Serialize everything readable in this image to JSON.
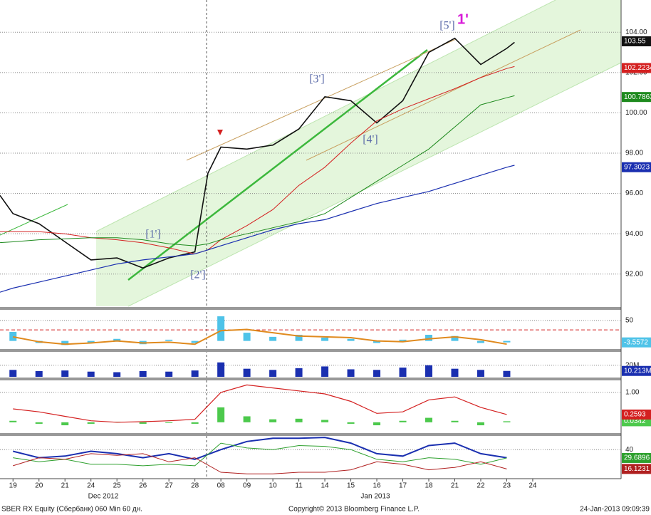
{
  "chart_data": [
    {
      "type": "line",
      "xlim": [
        -0.5,
        23.4
      ],
      "ylim": [
        90.4,
        105.6
      ],
      "yticks": [
        {
          "value": 92,
          "label": "92.00"
        },
        {
          "value": 94,
          "label": "94.00"
        },
        {
          "value": 96,
          "label": "96.00"
        },
        {
          "value": 98,
          "label": "98.00"
        },
        {
          "value": 100,
          "label": "100.00"
        },
        {
          "value": 102,
          "label": "102.00"
        },
        {
          "value": 104,
          "label": "104.00"
        }
      ],
      "xticks": [
        {
          "value": 0,
          "label": "19"
        },
        {
          "value": 1,
          "label": "20"
        },
        {
          "value": 2,
          "label": "21"
        },
        {
          "value": 3,
          "label": "24"
        },
        {
          "value": 4,
          "label": "25"
        },
        {
          "value": 5,
          "label": "26"
        },
        {
          "value": 6,
          "label": "27"
        },
        {
          "value": 7,
          "label": "28"
        },
        {
          "value": 8,
          "label": "08"
        },
        {
          "value": 9,
          "label": "09"
        },
        {
          "value": 10,
          "label": "10"
        },
        {
          "value": 11,
          "label": "11"
        },
        {
          "value": 12,
          "label": "14"
        },
        {
          "value": 13,
          "label": "15"
        },
        {
          "value": 14,
          "label": "16"
        },
        {
          "value": 15,
          "label": "17"
        },
        {
          "value": 16,
          "label": "18"
        },
        {
          "value": 17,
          "label": "21"
        },
        {
          "value": 18,
          "label": "22"
        },
        {
          "value": 19,
          "label": "23"
        },
        {
          "value": 20,
          "label": "24"
        }
      ],
      "months": [
        "Dec 2012",
        "Jan 2013"
      ],
      "annotations": [
        "[1']",
        "[2']",
        "[3']",
        "[4']",
        "[5']",
        "1'"
      ],
      "grid": true,
      "x": [
        -0.5,
        0,
        1,
        2,
        3,
        4,
        5,
        6,
        7,
        7.5,
        8,
        9,
        10,
        11,
        12,
        13,
        14,
        15,
        16,
        17,
        18,
        19,
        19.3
      ],
      "series": [
        {
          "kind": "line",
          "color": "#111111",
          "width": 1.6,
          "last": 103.55,
          "values": [
            95.9,
            95.0,
            94.5,
            93.6,
            92.7,
            92.8,
            92.3,
            92.8,
            93.1,
            97.0,
            98.3,
            98.2,
            98.4,
            99.2,
            100.8,
            100.6,
            99.5,
            100.6,
            103.0,
            103.7,
            102.4,
            103.2,
            103.5
          ]
        },
        {
          "kind": "line",
          "color": "#d42020",
          "width": 1,
          "last": 102.2234,
          "values": [
            94.1,
            94.1,
            94.1,
            94.0,
            93.8,
            93.7,
            93.55,
            93.3,
            93.0,
            93.2,
            93.7,
            94.4,
            95.2,
            96.4,
            97.3,
            98.5,
            99.6,
            100.2,
            100.7,
            101.2,
            101.75,
            102.2,
            102.3
          ]
        },
        {
          "kind": "line",
          "color": "#1e8a1e",
          "width": 1,
          "last": 100.7863,
          "values": [
            93.56,
            93.6,
            93.7,
            93.75,
            93.8,
            93.8,
            93.7,
            93.5,
            93.4,
            93.5,
            93.7,
            94.0,
            94.3,
            94.6,
            95.0,
            95.8,
            96.6,
            97.4,
            98.2,
            99.3,
            100.4,
            100.75,
            100.85
          ]
        },
        {
          "kind": "line",
          "color": "#1a2fb0",
          "width": 1.2,
          "last": 97.3023,
          "values": [
            91.1,
            91.3,
            91.6,
            91.9,
            92.2,
            92.5,
            92.7,
            92.85,
            93.0,
            93.2,
            93.4,
            93.8,
            94.2,
            94.5,
            94.7,
            95.1,
            95.5,
            95.8,
            96.1,
            96.5,
            96.9,
            97.3,
            97.4
          ]
        }
      ]
    },
    {
      "type": "line",
      "xlim": [
        -0.5,
        23.4
      ],
      "ylim": [
        -18,
        74
      ],
      "yticks": [
        50
      ],
      "hline": 27,
      "x": [
        0,
        1,
        2,
        3,
        4,
        5,
        6,
        7,
        8,
        9,
        10,
        11,
        12,
        13,
        14,
        15,
        16,
        17,
        18,
        19
      ],
      "series": [
        {
          "kind": "bar",
          "color": "#4fc3e8",
          "last": -3.5572,
          "values": [
            22,
            -5,
            -10,
            -5,
            5,
            -8,
            3,
            -5,
            60,
            20,
            10,
            15,
            8,
            5,
            -5,
            3,
            15,
            12,
            -5,
            -3.5572
          ]
        },
        {
          "kind": "line",
          "color": "#e08a1e",
          "width": 2,
          "values": [
            10,
            -2,
            -8,
            -5,
            0,
            -5,
            -3,
            -8,
            25,
            28,
            20,
            12,
            10,
            8,
            0,
            -2,
            5,
            10,
            3,
            -8
          ]
        }
      ]
    },
    {
      "type": "line",
      "xlim": [
        -0.5,
        23.4
      ],
      "ylim": [
        0,
        42
      ],
      "yticks": [
        {
          "value": 20,
          "label": "20M"
        }
      ],
      "x": [
        0,
        1,
        2,
        3,
        4,
        5,
        6,
        7,
        8,
        9,
        10,
        11,
        12,
        13,
        14,
        15,
        16,
        17,
        18,
        19
      ],
      "series": [
        {
          "kind": "bar",
          "color": "#1a2fb0",
          "last": {
            "value": 10.213,
            "label": "10.213M"
          },
          "values": [
            12,
            10,
            11,
            9,
            8,
            10,
            9,
            11,
            25,
            14,
            12,
            15,
            18,
            13,
            12,
            16,
            20,
            14,
            12,
            10.213
          ]
        }
      ]
    },
    {
      "type": "line",
      "xlim": [
        -0.5,
        23.4
      ],
      "ylim": [
        -0.29,
        1.38
      ],
      "yticks": [
        {
          "value": 1,
          "label": "1.00"
        }
      ],
      "x": [
        0,
        1,
        2,
        3,
        4,
        5,
        6,
        7,
        8,
        9,
        10,
        11,
        12,
        13,
        14,
        15,
        16,
        17,
        18,
        19
      ],
      "series": [
        {
          "kind": "bar",
          "color": "#4cc94c",
          "last": 0.0342,
          "values": [
            0.05,
            -0.05,
            -0.1,
            -0.05,
            0.02,
            -0.05,
            0.0,
            -0.05,
            0.5,
            0.2,
            0.1,
            0.12,
            0.08,
            -0.05,
            -0.1,
            0.05,
            0.15,
            0.05,
            -0.1,
            0.0342
          ]
        },
        {
          "kind": "line",
          "color": "#d42020",
          "width": 1.2,
          "last": 0.2593,
          "values": [
            0.45,
            0.35,
            0.2,
            0.05,
            0.0,
            0.02,
            0.05,
            0.1,
            1.0,
            1.25,
            1.15,
            1.05,
            0.95,
            0.7,
            0.3,
            0.35,
            0.75,
            0.85,
            0.5,
            0.26
          ]
        }
      ]
    },
    {
      "type": "line",
      "xlim": [
        -0.5,
        23.4
      ],
      "ylim": [
        5,
        56
      ],
      "yticks": [
        40
      ],
      "x": [
        0,
        1,
        2,
        3,
        4,
        5,
        6,
        7,
        8,
        9,
        10,
        11,
        12,
        13,
        14,
        15,
        16,
        17,
        18,
        19
      ],
      "series": [
        {
          "kind": "line",
          "color": "#1a2fb0",
          "width": 2,
          "values": [
            38,
            30,
            32,
            38,
            35,
            30,
            35,
            28,
            40,
            50,
            54,
            54,
            55,
            48,
            35,
            32,
            45,
            48,
            35,
            30
          ]
        },
        {
          "kind": "line",
          "color": "#2ea02e",
          "width": 1,
          "last": 29.6896,
          "values": [
            30,
            25,
            28,
            22,
            22,
            20,
            22,
            20,
            48,
            42,
            40,
            45,
            44,
            40,
            28,
            25,
            30,
            28,
            22,
            29.6896
          ]
        },
        {
          "kind": "line",
          "color": "#b02020",
          "width": 1,
          "last": 16.1231,
          "values": [
            20,
            30,
            28,
            35,
            33,
            35,
            25,
            30,
            12,
            10,
            10,
            12,
            12,
            15,
            25,
            22,
            15,
            18,
            25,
            16.1231
          ]
        }
      ]
    }
  ],
  "footer": {
    "left": "SBER RX Equity (Сбербанк) 060 Min 60 дн.",
    "center": "Copyright© 2013 Bloomberg Finance L.P.",
    "right": "24-Jan-2013 09:09:39"
  }
}
